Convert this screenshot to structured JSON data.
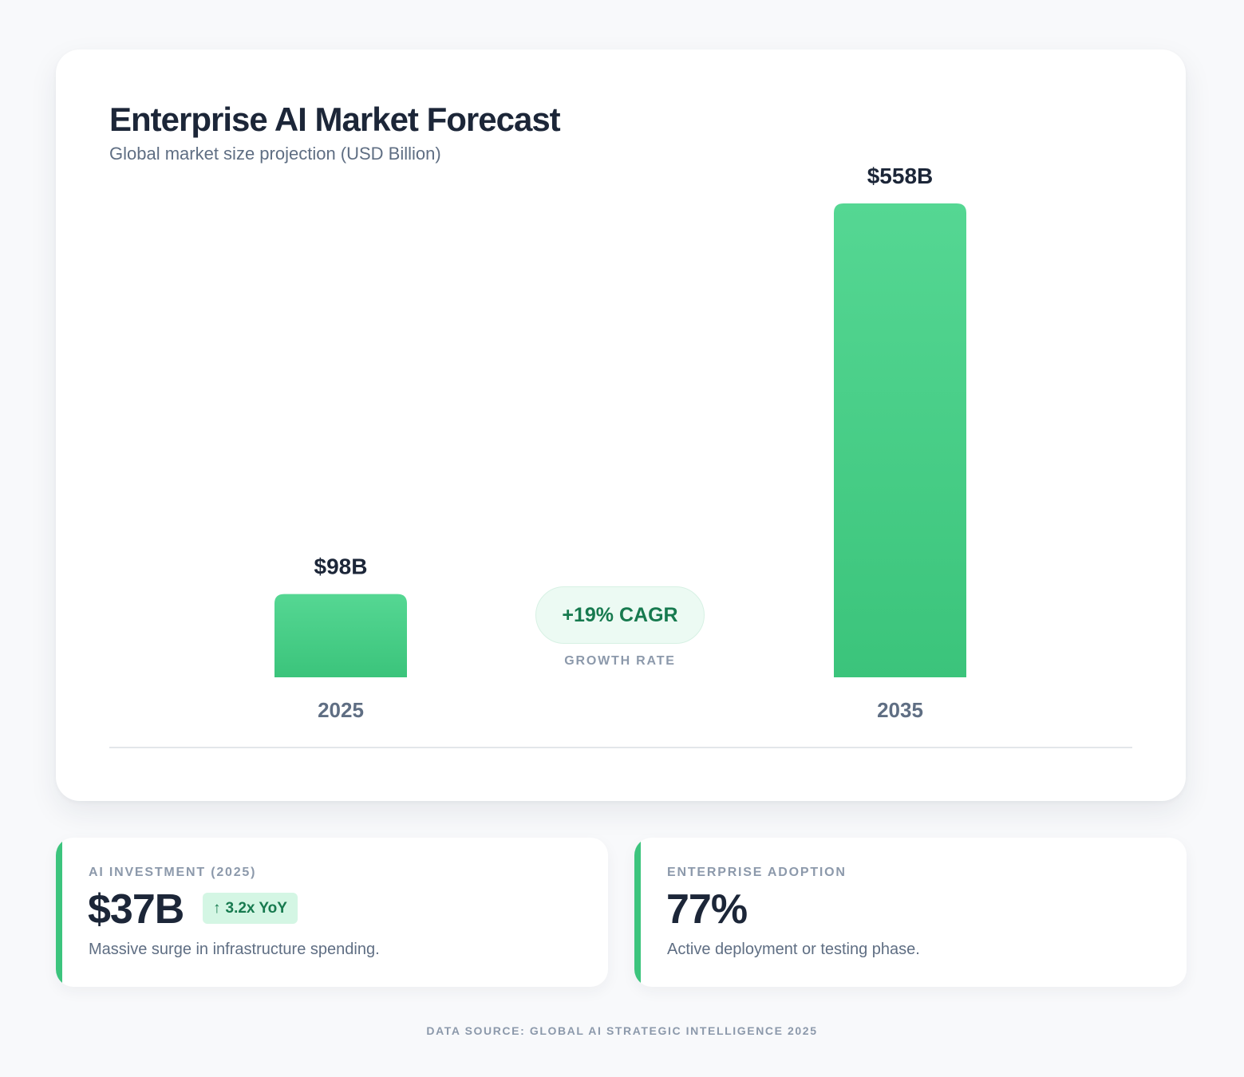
{
  "header": {
    "title": "Enterprise AI Market Forecast",
    "subtitle": "Global market size projection (USD Billion)"
  },
  "chart_data": {
    "type": "bar",
    "title": "Enterprise AI Market Forecast",
    "subtitle": "Global market size projection (USD Billion)",
    "categories": [
      "2025",
      "2035"
    ],
    "values": [
      98,
      558
    ],
    "value_labels": [
      "$98B",
      "$558B"
    ],
    "unit": "USD Billion",
    "grid": false,
    "bar_color_top": "#55d793",
    "bar_color_bottom": "#3bc47b"
  },
  "growth": {
    "cagr_label": "+19% CAGR",
    "caption": "GROWTH RATE"
  },
  "stats": [
    {
      "label": "AI INVESTMENT (2025)",
      "value": "$37B",
      "badge_icon": "arrow-up-icon",
      "badge_arrow": "↑",
      "badge": "3.2x YoY",
      "description": "Massive surge in infrastructure spending."
    },
    {
      "label": "ENTERPRISE ADOPTION",
      "value": "77%",
      "description": "Active deployment or testing phase."
    }
  ],
  "footer": {
    "source": "DATA SOURCE: GLOBAL AI STRATEGIC INTELLIGENCE 2025"
  },
  "colors": {
    "accent": "#3cc47d",
    "text_dark": "#1c2638",
    "text_muted": "#5f6e83",
    "badge_bg": "#d4f6e4",
    "badge_text": "#177a4f"
  }
}
